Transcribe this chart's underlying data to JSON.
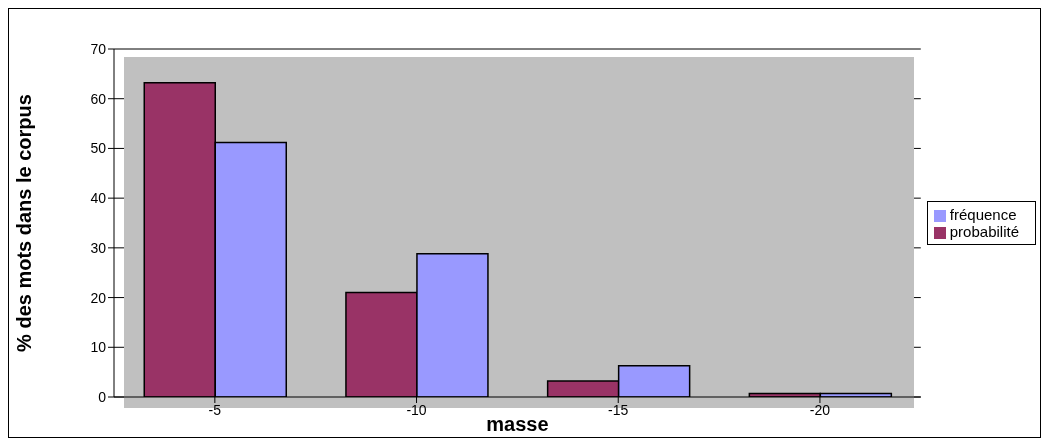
{
  "chart_data": {
    "type": "bar",
    "categories": [
      "-5",
      "-10",
      "-15",
      "-20"
    ],
    "xlabel": "masse",
    "ylabel": "% des mots dans le corpus",
    "series": [
      {
        "name": "probabilité",
        "color": "#993366",
        "values": [
          63.2,
          21.0,
          3.2,
          0.7
        ]
      },
      {
        "name": "fréquence",
        "color": "#9999ff",
        "values": [
          51.2,
          28.8,
          6.3,
          0.7
        ]
      }
    ],
    "ylim": [
      0,
      70
    ],
    "yticks": [
      0,
      10,
      20,
      30,
      40,
      50,
      60,
      70
    ],
    "grid": "y",
    "legend": "right"
  }
}
